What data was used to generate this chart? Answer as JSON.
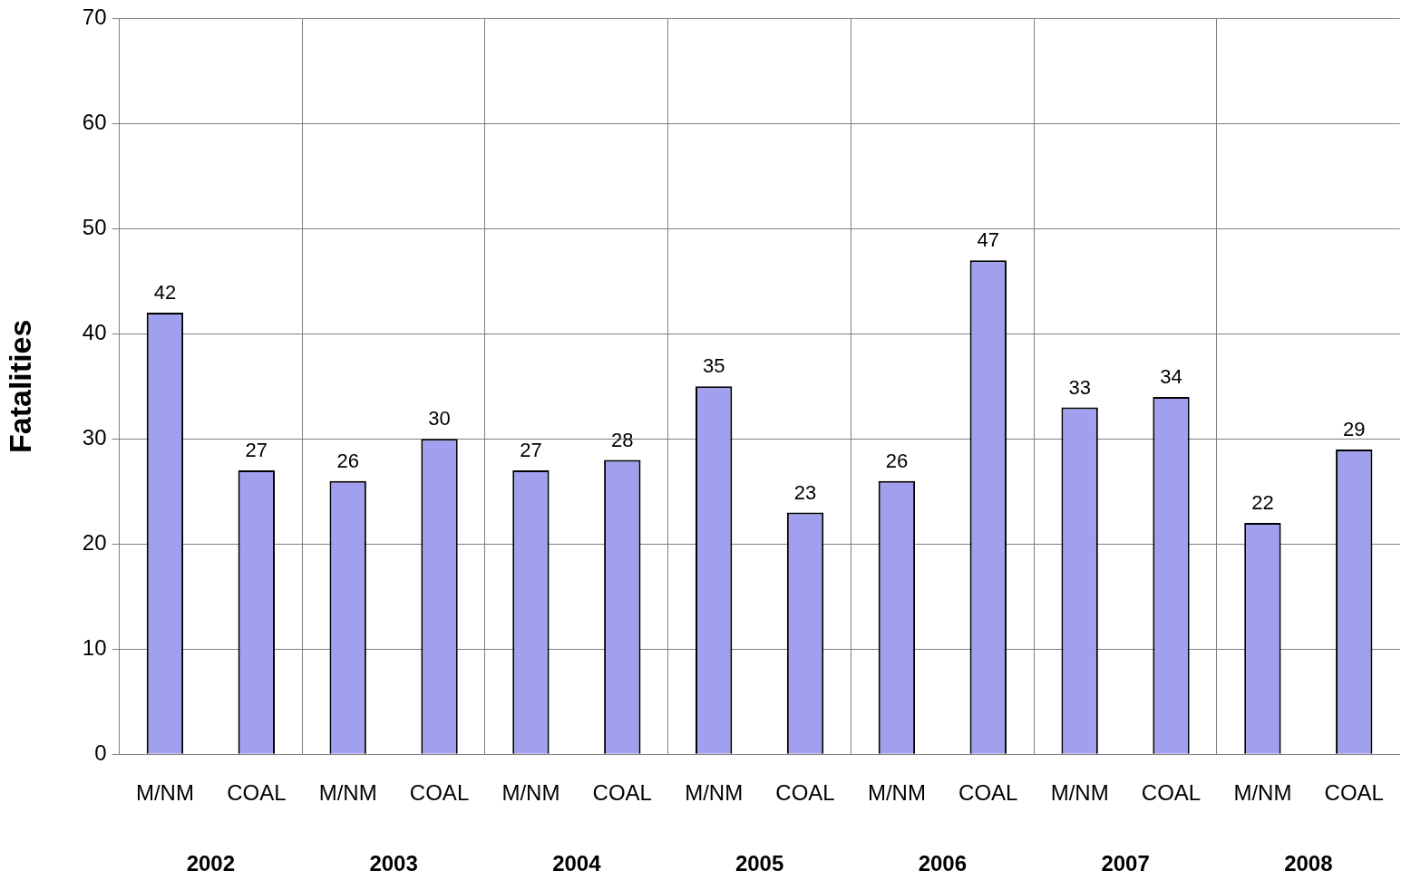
{
  "chart_data": {
    "type": "bar",
    "ylabel": "Fatalities",
    "categories": [
      "M/NM",
      "COAL",
      "M/NM",
      "COAL",
      "M/NM",
      "COAL",
      "M/NM",
      "COAL",
      "M/NM",
      "COAL",
      "M/NM",
      "COAL",
      "M/NM",
      "COAL"
    ],
    "values": [
      42,
      27,
      26,
      30,
      27,
      28,
      35,
      23,
      26,
      47,
      33,
      34,
      22,
      29
    ],
    "color": "#a0a0ee",
    "ylim": [
      0,
      70
    ],
    "yticks": [
      0,
      10,
      20,
      30,
      40,
      50,
      60,
      70
    ],
    "grid": true,
    "data_labels": true,
    "annotations": [
      "2002",
      "2003",
      "2004",
      "2005",
      "2006",
      "2007",
      "2008"
    ]
  }
}
